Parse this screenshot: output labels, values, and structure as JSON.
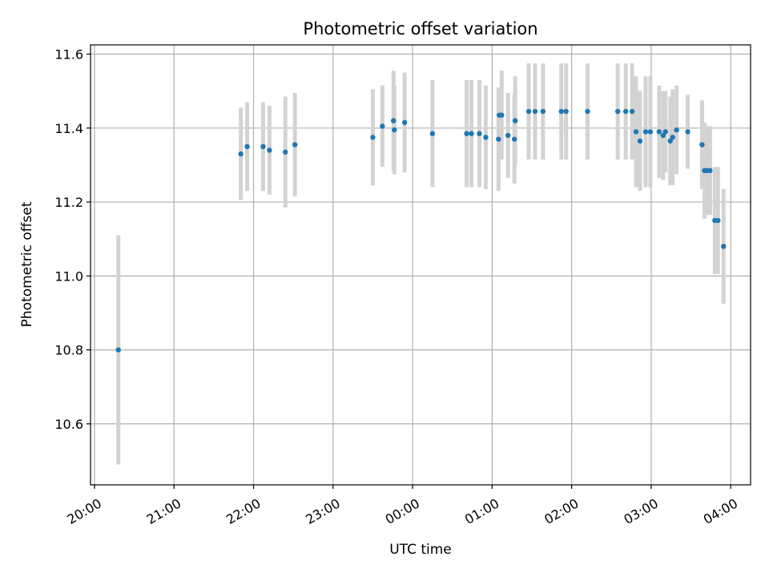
{
  "chart_data": {
    "type": "scatter",
    "title": "Photometric offset variation",
    "xlabel": "UTC time",
    "ylabel": "Photometric offset",
    "x_ticks": [
      "20:00",
      "21:00",
      "22:00",
      "23:00",
      "00:00",
      "01:00",
      "02:00",
      "03:00",
      "04:00"
    ],
    "y_ticks": [
      "10.6",
      "10.8",
      "11.0",
      "11.2",
      "11.4",
      "11.6"
    ],
    "xlim_hours": [
      19.95,
      28.25
    ],
    "ylim": [
      10.435,
      11.625
    ],
    "grid": true,
    "colors": {
      "point": "#1f77b4",
      "errorbar": "#d3d3d3",
      "grid": "#b0b0b0"
    },
    "points": [
      {
        "t": 20.3,
        "y": 10.8,
        "err": 0.31
      },
      {
        "t": 21.84,
        "y": 11.33,
        "err": 0.125
      },
      {
        "t": 21.92,
        "y": 11.35,
        "err": 0.12
      },
      {
        "t": 22.12,
        "y": 11.35,
        "err": 0.12
      },
      {
        "t": 22.2,
        "y": 11.34,
        "err": 0.12
      },
      {
        "t": 22.4,
        "y": 11.335,
        "err": 0.15
      },
      {
        "t": 22.52,
        "y": 11.355,
        "err": 0.14
      },
      {
        "t": 23.5,
        "y": 11.375,
        "err": 0.13
      },
      {
        "t": 23.62,
        "y": 11.405,
        "err": 0.11
      },
      {
        "t": 23.76,
        "y": 11.42,
        "err": 0.135
      },
      {
        "t": 23.77,
        "y": 11.395,
        "err": 0.12
      },
      {
        "t": 23.9,
        "y": 11.415,
        "err": 0.135
      },
      {
        "t": 24.25,
        "y": 11.385,
        "err": 0.145
      },
      {
        "t": 24.68,
        "y": 11.385,
        "err": 0.145
      },
      {
        "t": 24.74,
        "y": 11.385,
        "err": 0.145
      },
      {
        "t": 24.84,
        "y": 11.385,
        "err": 0.145
      },
      {
        "t": 24.92,
        "y": 11.375,
        "err": 0.14
      },
      {
        "t": 25.08,
        "y": 11.37,
        "err": 0.14
      },
      {
        "t": 25.09,
        "y": 11.435,
        "err": 0.075
      },
      {
        "t": 25.12,
        "y": 11.435,
        "err": 0.12
      },
      {
        "t": 25.2,
        "y": 11.38,
        "err": 0.115
      },
      {
        "t": 25.28,
        "y": 11.37,
        "err": 0.12
      },
      {
        "t": 25.29,
        "y": 11.42,
        "err": 0.12
      },
      {
        "t": 25.46,
        "y": 11.445,
        "err": 0.13
      },
      {
        "t": 25.54,
        "y": 11.445,
        "err": 0.13
      },
      {
        "t": 25.64,
        "y": 11.445,
        "err": 0.13
      },
      {
        "t": 25.87,
        "y": 11.445,
        "err": 0.13
      },
      {
        "t": 25.93,
        "y": 11.445,
        "err": 0.13
      },
      {
        "t": 26.2,
        "y": 11.445,
        "err": 0.13
      },
      {
        "t": 26.58,
        "y": 11.445,
        "err": 0.13
      },
      {
        "t": 26.68,
        "y": 11.445,
        "err": 0.13
      },
      {
        "t": 26.76,
        "y": 11.445,
        "err": 0.13
      },
      {
        "t": 26.81,
        "y": 11.39,
        "err": 0.15
      },
      {
        "t": 26.86,
        "y": 11.365,
        "err": 0.135
      },
      {
        "t": 26.93,
        "y": 11.39,
        "err": 0.15
      },
      {
        "t": 26.99,
        "y": 11.39,
        "err": 0.15
      },
      {
        "t": 27.1,
        "y": 11.39,
        "err": 0.125
      },
      {
        "t": 27.15,
        "y": 11.38,
        "err": 0.12
      },
      {
        "t": 27.18,
        "y": 11.39,
        "err": 0.11
      },
      {
        "t": 27.24,
        "y": 11.365,
        "err": 0.12
      },
      {
        "t": 27.27,
        "y": 11.375,
        "err": 0.13
      },
      {
        "t": 27.32,
        "y": 11.395,
        "err": 0.12
      },
      {
        "t": 27.46,
        "y": 11.39,
        "err": 0.1
      },
      {
        "t": 27.64,
        "y": 11.355,
        "err": 0.12
      },
      {
        "t": 27.67,
        "y": 11.285,
        "err": 0.13
      },
      {
        "t": 27.7,
        "y": 11.285,
        "err": 0.12
      },
      {
        "t": 27.74,
        "y": 11.285,
        "err": 0.12
      },
      {
        "t": 27.8,
        "y": 11.15,
        "err": 0.145
      },
      {
        "t": 27.84,
        "y": 11.15,
        "err": 0.145
      },
      {
        "t": 27.91,
        "y": 11.08,
        "err": 0.155
      }
    ]
  }
}
